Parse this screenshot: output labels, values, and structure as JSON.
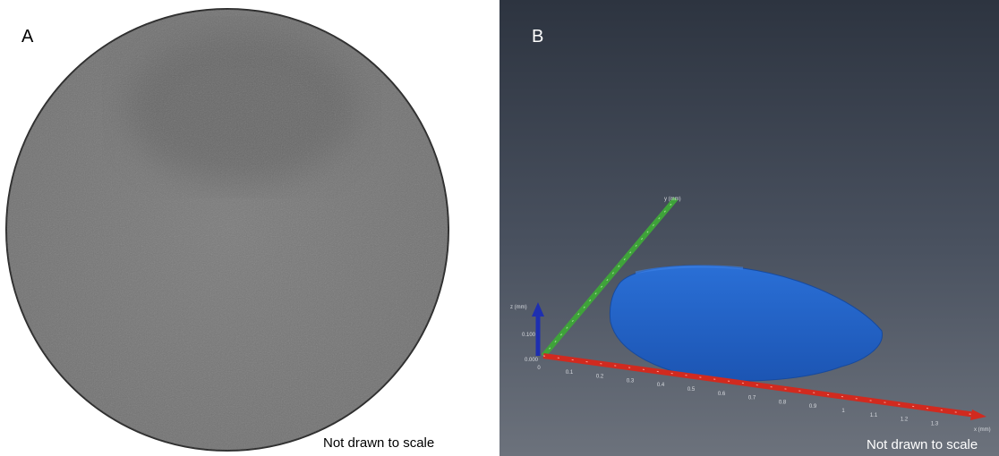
{
  "panel_a": {
    "label": "A",
    "note": "Not drawn to scale"
  },
  "panel_b": {
    "label": "B",
    "note": "Not drawn to scale",
    "x_axis": {
      "title": "x (mm)",
      "ticks": [
        "0",
        "0.1",
        "0.2",
        "0.3",
        "0.4",
        "0.5",
        "0.6",
        "0.7",
        "0.8",
        "0.9",
        "1",
        "1.1",
        "1.2",
        "1.3"
      ]
    },
    "y_axis": {
      "title": "y (mm)"
    },
    "z_axis": {
      "title": "z (mm)",
      "ticks": [
        "0.000",
        "0.100"
      ]
    }
  }
}
